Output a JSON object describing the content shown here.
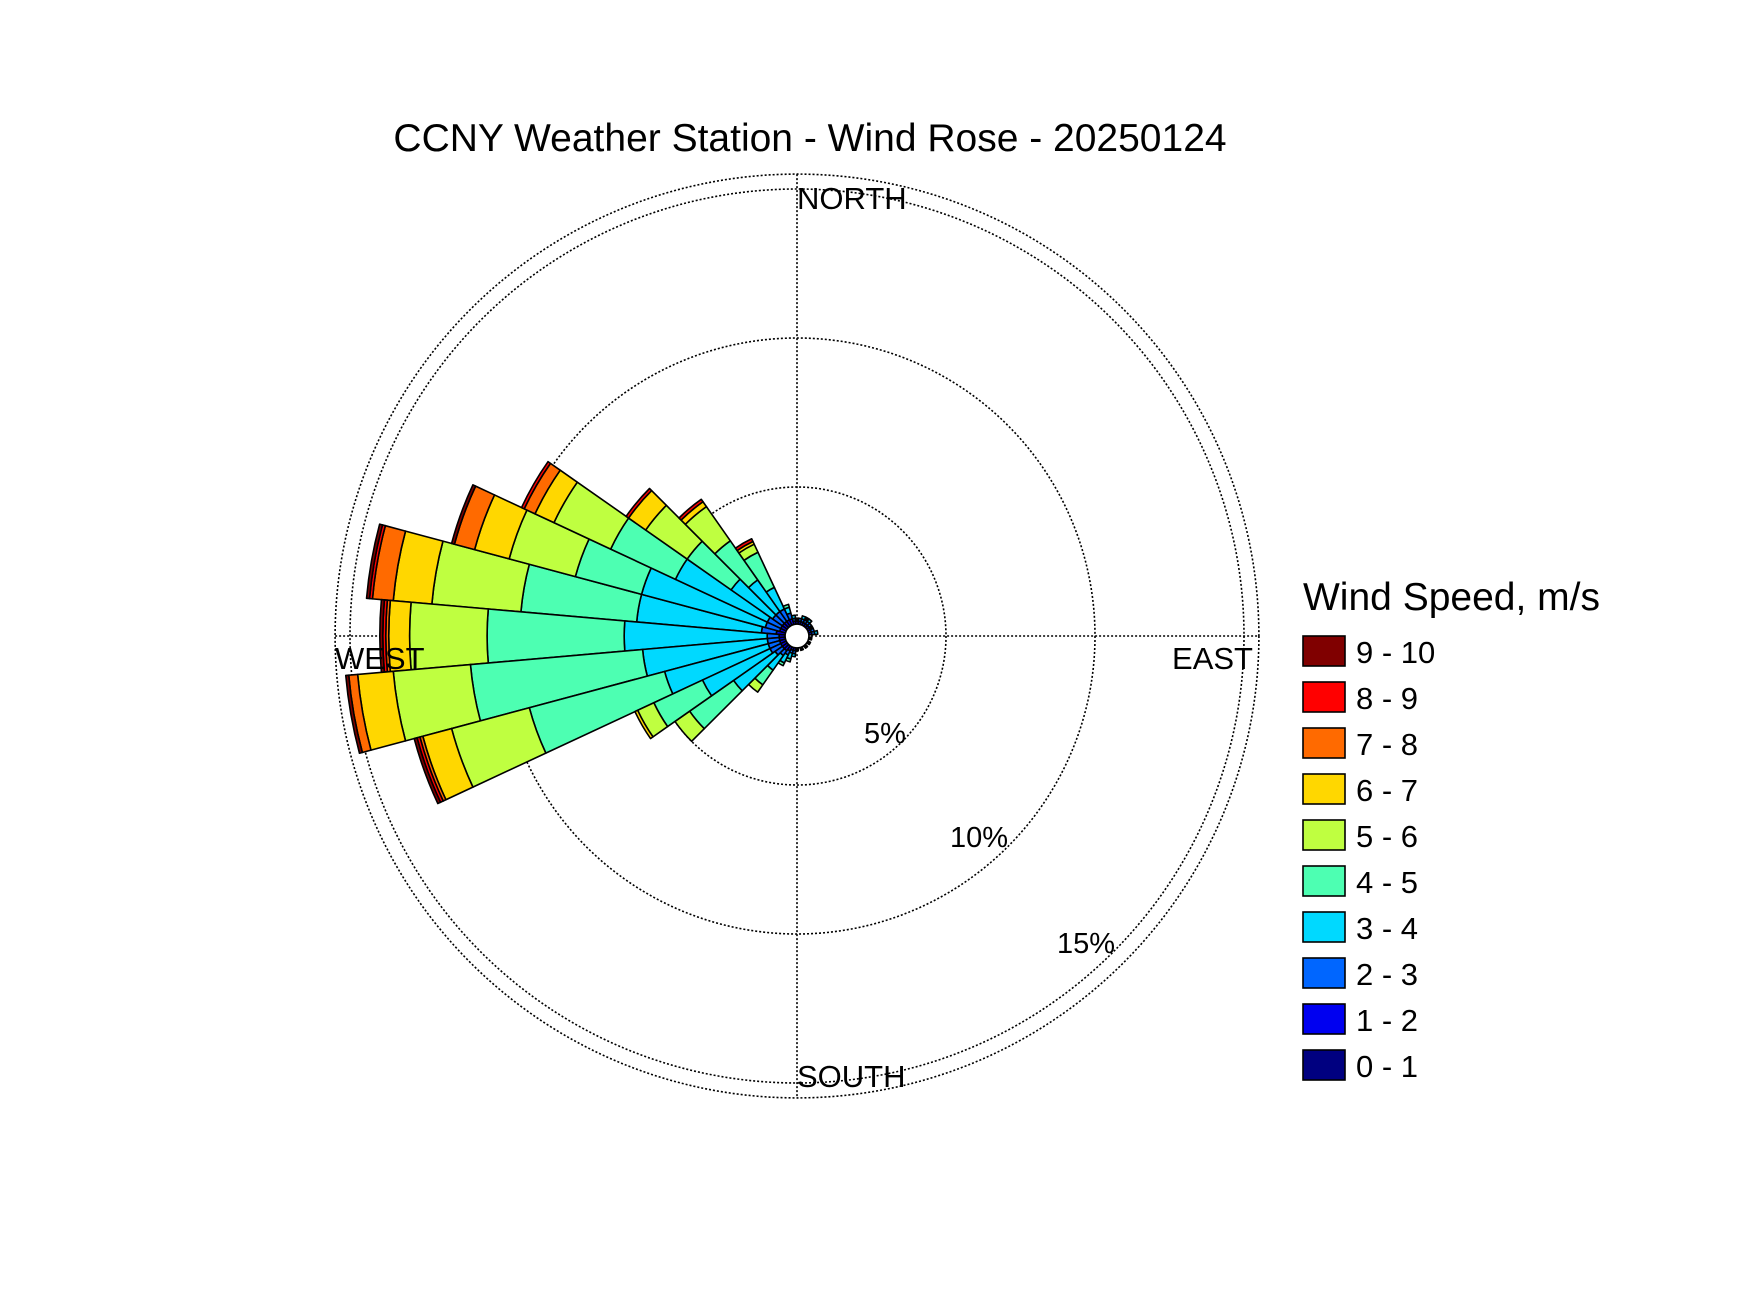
{
  "chart_data": {
    "type": "wind-rose",
    "title": "CCNY Weather Station - Wind Rose - 20250124",
    "direction_labels": {
      "north": "NORTH",
      "east": "EAST",
      "south": "SOUTH",
      "west": "WEST"
    },
    "radial_unit": "%",
    "radial_ticks": [
      {
        "value": 5,
        "label": "5%"
      },
      {
        "value": 10,
        "label": "10%"
      },
      {
        "value": 15,
        "label": "15%"
      }
    ],
    "radial_max": 15.5,
    "grid": true,
    "sector_width_deg": 10,
    "legend": {
      "title": "Wind Speed, m/s",
      "placement": "right",
      "bins": [
        {
          "label": "9 - 10",
          "color": "#800000"
        },
        {
          "label": "8 - 9",
          "color": "#FF0000"
        },
        {
          "label": "7 - 8",
          "color": "#FF6A00"
        },
        {
          "label": "6 - 7",
          "color": "#FFD700"
        },
        {
          "label": "5 - 6",
          "color": "#BFFF40"
        },
        {
          "label": "4 - 5",
          "color": "#4DFFB2"
        },
        {
          "label": "3 - 4",
          "color": "#00D9FF"
        },
        {
          "label": "2 - 3",
          "color": "#0066FF"
        },
        {
          "label": "1 - 2",
          "color": "#0000F0"
        },
        {
          "label": "0 - 1",
          "color": "#000080"
        }
      ]
    },
    "sectors": [
      {
        "direction_deg": 280,
        "cumulative_pct": [
          0.4,
          0.7,
          1.2,
          5.4,
          9.3,
          12.3,
          13.6,
          14.3,
          14.4,
          14.5
        ]
      },
      {
        "direction_deg": 270,
        "cumulative_pct": [
          0.4,
          0.6,
          1.0,
          5.8,
          10.4,
          13.0,
          13.7,
          13.8,
          13.9,
          14.0
        ]
      },
      {
        "direction_deg": 260,
        "cumulative_pct": [
          0.4,
          0.6,
          1.0,
          5.2,
          11.0,
          13.6,
          14.8,
          15.1,
          15.1,
          15.2
        ]
      },
      {
        "direction_deg": 250,
        "cumulative_pct": [
          0.4,
          0.6,
          1.0,
          4.6,
          9.3,
          12.0,
          13.0,
          13.1,
          13.2,
          13.3
        ]
      },
      {
        "direction_deg": 290,
        "cumulative_pct": [
          0.4,
          0.6,
          1.1,
          5.4,
          7.7,
          10.0,
          11.2,
          11.9,
          11.9,
          12.0
        ]
      },
      {
        "direction_deg": 300,
        "cumulative_pct": [
          0.4,
          0.6,
          1.1,
          4.5,
          6.9,
          9.0,
          9.7,
          10.1,
          10.2,
          10.2
        ]
      },
      {
        "direction_deg": 310,
        "cumulative_pct": [
          0.4,
          0.6,
          1.0,
          2.7,
          4.5,
          6.2,
          6.9,
          6.9,
          7.0,
          7.0
        ]
      },
      {
        "direction_deg": 320,
        "cumulative_pct": [
          0.4,
          0.6,
          1.0,
          2.3,
          3.9,
          5.3,
          5.5,
          5.5,
          5.6,
          5.6
        ]
      },
      {
        "direction_deg": 330,
        "cumulative_pct": [
          0.4,
          0.6,
          1.0,
          1.8,
          3.1,
          3.4,
          3.5,
          3.5,
          3.6,
          3.6
        ]
      },
      {
        "direction_deg": 340,
        "cumulative_pct": [
          0.4,
          0.6,
          0.8,
          1.0,
          1.1,
          1.1,
          1.1,
          1.1,
          1.1,
          1.1
        ]
      },
      {
        "direction_deg": 350,
        "cumulative_pct": [
          0.4,
          0.5,
          0.6,
          0.7,
          0.7,
          0.7,
          0.7,
          0.7,
          0.7,
          0.7
        ]
      },
      {
        "direction_deg": 0,
        "cumulative_pct": [
          0.4,
          0.5,
          0.55,
          0.6,
          0.6,
          0.6,
          0.6,
          0.6,
          0.6,
          0.6
        ]
      },
      {
        "direction_deg": 10,
        "cumulative_pct": [
          0.4,
          0.5,
          0.6,
          0.6,
          0.6,
          0.6,
          0.6,
          0.6,
          0.6,
          0.6
        ]
      },
      {
        "direction_deg": 20,
        "cumulative_pct": [
          0.4,
          0.5,
          0.6,
          0.7,
          0.7,
          0.7,
          0.7,
          0.7,
          0.7,
          0.7
        ]
      },
      {
        "direction_deg": 30,
        "cumulative_pct": [
          0.4,
          0.5,
          0.6,
          0.65,
          0.7,
          0.7,
          0.7,
          0.7,
          0.7,
          0.7
        ]
      },
      {
        "direction_deg": 40,
        "cumulative_pct": [
          0.4,
          0.5,
          0.6,
          0.7,
          0.7,
          0.7,
          0.7,
          0.7,
          0.7,
          0.7
        ]
      },
      {
        "direction_deg": 50,
        "cumulative_pct": [
          0.4,
          0.5,
          0.6,
          0.6,
          0.6,
          0.6,
          0.6,
          0.6,
          0.6,
          0.6
        ]
      },
      {
        "direction_deg": 60,
        "cumulative_pct": [
          0.4,
          0.5,
          0.55,
          0.6,
          0.6,
          0.6,
          0.6,
          0.6,
          0.6,
          0.6
        ]
      },
      {
        "direction_deg": 70,
        "cumulative_pct": [
          0.4,
          0.5,
          0.6,
          0.6,
          0.6,
          0.6,
          0.6,
          0.6,
          0.6,
          0.6
        ]
      },
      {
        "direction_deg": 80,
        "cumulative_pct": [
          0.4,
          0.5,
          0.6,
          0.7,
          0.7,
          0.7,
          0.7,
          0.7,
          0.7,
          0.7
        ]
      },
      {
        "direction_deg": 100,
        "cumulative_pct": [
          0.4,
          0.45,
          0.5,
          0.5,
          0.5,
          0.5,
          0.5,
          0.5,
          0.5,
          0.5
        ]
      },
      {
        "direction_deg": 120,
        "cumulative_pct": [
          0.4,
          0.45,
          0.5,
          0.5,
          0.5,
          0.5,
          0.5,
          0.5,
          0.5,
          0.5
        ]
      },
      {
        "direction_deg": 140,
        "cumulative_pct": [
          0.4,
          0.45,
          0.5,
          0.5,
          0.5,
          0.5,
          0.5,
          0.5,
          0.5,
          0.5
        ]
      },
      {
        "direction_deg": 160,
        "cumulative_pct": [
          0.4,
          0.45,
          0.5,
          0.5,
          0.5,
          0.5,
          0.5,
          0.5,
          0.5,
          0.5
        ]
      },
      {
        "direction_deg": 180,
        "cumulative_pct": [
          0.4,
          0.45,
          0.5,
          0.5,
          0.5,
          0.5,
          0.5,
          0.5,
          0.5,
          0.5
        ]
      },
      {
        "direction_deg": 190,
        "cumulative_pct": [
          0.4,
          0.5,
          0.6,
          0.7,
          0.7,
          0.7,
          0.7,
          0.7,
          0.7,
          0.7
        ]
      },
      {
        "direction_deg": 200,
        "cumulative_pct": [
          0.4,
          0.5,
          0.6,
          0.8,
          0.9,
          0.9,
          0.9,
          0.9,
          0.9,
          0.9
        ]
      },
      {
        "direction_deg": 210,
        "cumulative_pct": [
          0.4,
          0.55,
          0.7,
          1.0,
          1.1,
          1.1,
          1.1,
          1.1,
          1.1,
          1.1
        ]
      },
      {
        "direction_deg": 220,
        "cumulative_pct": [
          0.4,
          0.6,
          0.8,
          1.4,
          2.0,
          2.3,
          2.3,
          2.3,
          2.3,
          2.3
        ]
      },
      {
        "direction_deg": 230,
        "cumulative_pct": [
          0.4,
          0.6,
          0.9,
          2.6,
          4.4,
          5.0,
          5.0,
          5.0,
          5.0,
          5.0
        ]
      },
      {
        "direction_deg": 240,
        "cumulative_pct": [
          0.4,
          0.6,
          1.0,
          3.5,
          5.3,
          5.9,
          6.0,
          6.0,
          6.0,
          6.0
        ]
      }
    ]
  }
}
